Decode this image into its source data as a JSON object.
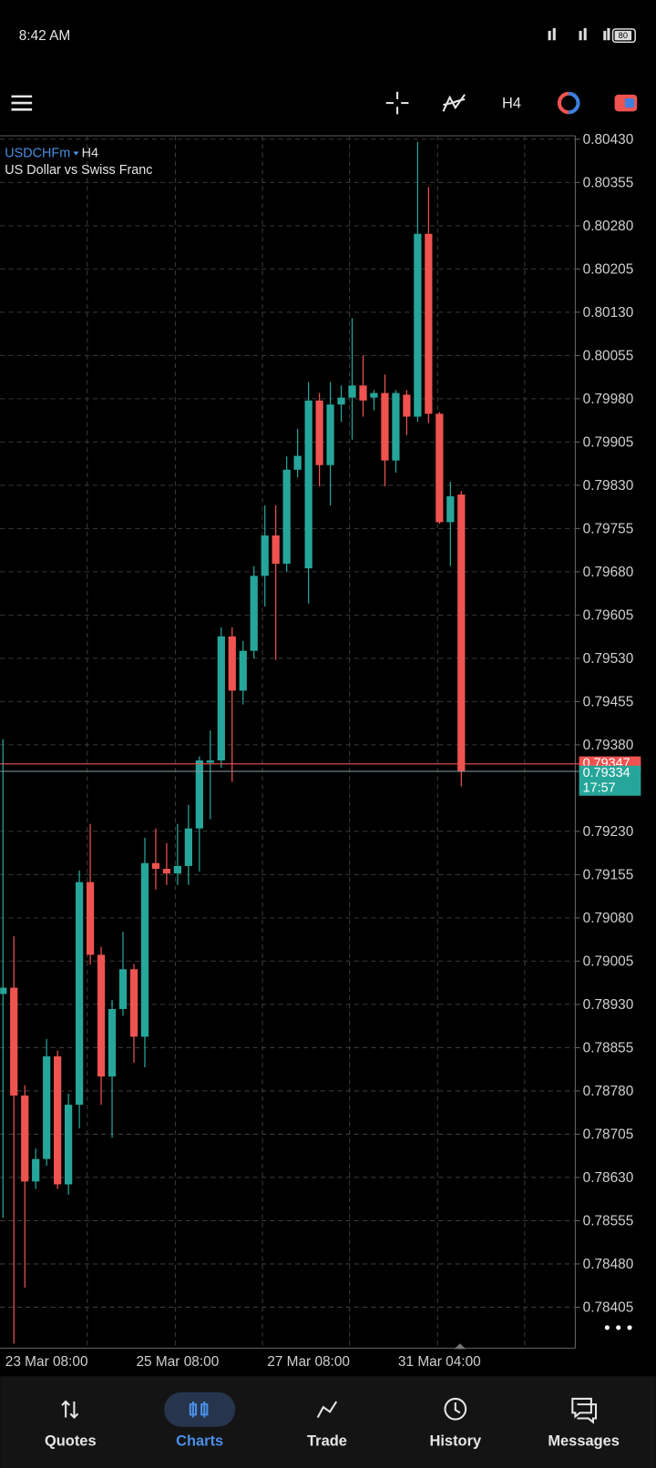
{
  "status_bar": {
    "time": "8:42 AM",
    "battery": "80"
  },
  "toolbar": {
    "timeframe": "H4"
  },
  "chart_data": {
    "type": "candlestick",
    "symbol": "USDCHFm",
    "timeframe": "H4",
    "description": "US Dollar vs Swiss Franc",
    "categories": [
      null,
      null,
      null,
      null,
      "23 Mar 08:00",
      null,
      null,
      null,
      null,
      null,
      null,
      null,
      null,
      null,
      null,
      null,
      "25 Mar 08:00",
      null,
      null,
      null,
      null,
      null,
      null,
      null,
      null,
      null,
      null,
      null,
      "27 Mar 08:00",
      null,
      null,
      null,
      null,
      null,
      null,
      null,
      null,
      null,
      null,
      null,
      "31 Mar 04:00",
      null,
      null
    ],
    "open": [
      0.78948,
      0.78959,
      0.78772,
      0.78623,
      0.78662,
      0.7884,
      0.78618,
      0.78756,
      0.79142,
      0.79016,
      0.78805,
      0.78922,
      0.78991,
      0.78874,
      0.79175,
      0.79165,
      0.79157,
      0.7917,
      0.79235,
      0.79349,
      0.79353,
      0.79568,
      0.79474,
      0.79543,
      0.79673,
      0.79743,
      0.79694,
      0.79857,
      0.79686,
      0.79977,
      0.79865,
      0.7997,
      0.79982,
      0.80003,
      0.79982,
      0.7999,
      0.79873,
      0.79987,
      0.79949,
      0.80266,
      0.79954,
      0.79766,
      0.79814
    ],
    "high": [
      0.7939,
      0.79048,
      0.7879,
      0.7868,
      0.7887,
      0.7885,
      0.78775,
      0.79162,
      0.79243,
      0.7903,
      0.78938,
      0.79056,
      0.79,
      0.79219,
      0.79235,
      0.7921,
      0.79243,
      0.79276,
      0.7936,
      0.79405,
      0.79584,
      0.79584,
      0.7956,
      0.7969,
      0.79795,
      0.79795,
      0.7988,
      0.79928,
      0.80009,
      0.7999,
      0.80009,
      0.80003,
      0.8012,
      0.80055,
      0.79995,
      0.80022,
      0.79995,
      0.79995,
      0.80425,
      0.80347,
      0.79957,
      0.79836,
      0.7982
    ],
    "low": [
      0.7856,
      0.78342,
      0.78439,
      0.7861,
      0.7865,
      0.7861,
      0.786,
      0.78715,
      0.78999,
      0.78756,
      0.78699,
      0.7891,
      0.78829,
      0.78821,
      0.79129,
      0.79137,
      0.79137,
      0.79137,
      0.7916,
      0.79251,
      0.7934,
      0.79316,
      0.7945,
      0.7953,
      0.7962,
      0.79527,
      0.7968,
      0.79844,
      0.79625,
      0.79828,
      0.79795,
      0.7994,
      0.79909,
      0.79949,
      0.7996,
      0.79828,
      0.79852,
      0.79917,
      0.7994,
      0.79938,
      0.79763,
      0.7969,
      0.79308
    ],
    "close": [
      0.78959,
      0.78772,
      0.78623,
      0.78662,
      0.7884,
      0.78618,
      0.78756,
      0.79142,
      0.79016,
      0.78805,
      0.78922,
      0.78991,
      0.78874,
      0.79175,
      0.79165,
      0.79157,
      0.7917,
      0.79235,
      0.79353,
      0.79353,
      0.79568,
      0.79474,
      0.79543,
      0.79673,
      0.79743,
      0.79694,
      0.79857,
      0.79881,
      0.79977,
      0.79865,
      0.7997,
      0.79982,
      0.80003,
      0.79977,
      0.7999,
      0.79873,
      0.7999,
      0.79949,
      0.80266,
      0.79954,
      0.79766,
      0.79811,
      0.79334
    ],
    "up_color": "#26a69a",
    "down_color": "#ef5350",
    "ylim": [
      0.78334,
      0.80436
    ],
    "yticks": [
      {
        "value": 0.8043,
        "label": "0.80430"
      },
      0.80355,
      {
        "value": 0.8028,
        "label": "0.80280"
      },
      0.80205,
      {
        "value": 0.8013,
        "label": "0.80130"
      },
      0.80055,
      {
        "value": 0.7998,
        "label": "0.79980"
      },
      0.79905,
      {
        "value": 0.7983,
        "label": "0.79830"
      },
      0.79755,
      {
        "value": 0.7968,
        "label": "0.79680"
      },
      0.79605,
      {
        "value": 0.7953,
        "label": "0.79530"
      },
      0.79455,
      {
        "value": 0.7938,
        "label": "0.79380"
      },
      {
        "value": 0.7923,
        "label": "0.79230"
      },
      0.79155,
      {
        "value": 0.7908,
        "label": "0.79080"
      },
      0.79005,
      {
        "value": 0.7893,
        "label": "0.78930"
      },
      0.78855,
      {
        "value": 0.7878,
        "label": "0.78780"
      },
      0.78705,
      {
        "value": 0.7863,
        "label": "0.78630"
      },
      0.78555,
      {
        "value": 0.7848,
        "label": "0.78480"
      },
      0.78405
    ],
    "grid": true,
    "bid_price": 0.79334,
    "ask_price": 0.79347,
    "bar_timer": "17:57"
  },
  "nav": {
    "items": [
      "Quotes",
      "Charts",
      "Trade",
      "History",
      "Messages"
    ],
    "active_index": 1
  }
}
